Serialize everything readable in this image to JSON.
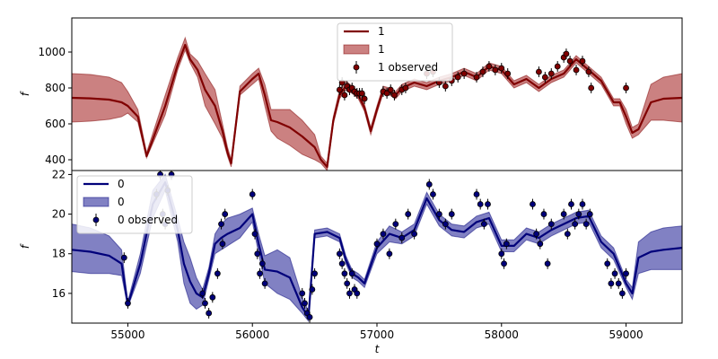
{
  "chart_data": [
    {
      "type": "line",
      "panel": "top",
      "xlabel": "",
      "ylabel": "f",
      "xlim": [
        54550,
        59450
      ],
      "ylim": [
        340,
        1190
      ],
      "yticks": [
        400,
        600,
        800,
        1000
      ],
      "legend": {
        "placement": "top-center",
        "entries": [
          "1",
          "1",
          "1 observed"
        ]
      },
      "colors": {
        "line": "#800000",
        "band": "#b54c4c",
        "points": "#800000"
      },
      "series": [
        {
          "name": "1",
          "kind": "mean-line",
          "x": [
            54550,
            54700,
            54850,
            54950,
            55000,
            55080,
            55150,
            55300,
            55400,
            55460,
            55500,
            55560,
            55620,
            55700,
            55760,
            55800,
            55830,
            55900,
            56000,
            56050,
            56100,
            56150,
            56200,
            56300,
            56400,
            56500,
            56550,
            56600,
            56650,
            56700,
            56750,
            56800,
            56850,
            56900,
            56950,
            57000,
            57050,
            57100,
            57150,
            57200,
            57300,
            57400,
            57500,
            57600,
            57700,
            57800,
            57900,
            58000,
            58100,
            58200,
            58300,
            58400,
            58500,
            58600,
            58700,
            58800,
            58900,
            58950,
            59000,
            59050,
            59100,
            59200,
            59300,
            59450
          ],
          "y": [
            745,
            742,
            735,
            720,
            700,
            640,
            420,
            700,
            930,
            1040,
            960,
            900,
            790,
            700,
            560,
            440,
            380,
            780,
            850,
            880,
            760,
            620,
            610,
            580,
            530,
            470,
            400,
            360,
            620,
            760,
            810,
            790,
            760,
            690,
            560,
            680,
            790,
            780,
            760,
            800,
            830,
            810,
            840,
            860,
            890,
            860,
            920,
            900,
            820,
            850,
            800,
            850,
            880,
            960,
            900,
            840,
            720,
            720,
            640,
            550,
            570,
            720,
            740,
            745
          ]
        },
        {
          "name": "1",
          "kind": "band",
          "x": [
            54550,
            54700,
            54850,
            54950,
            55000,
            55080,
            55150,
            55300,
            55400,
            55460,
            55500,
            55560,
            55620,
            55700,
            55760,
            55800,
            55830,
            55900,
            56000,
            56050,
            56100,
            56150,
            56200,
            56300,
            56400,
            56500,
            56550,
            56600,
            56650,
            56700,
            56750,
            56800,
            56850,
            56900,
            56950,
            57000,
            57050,
            57100,
            57150,
            57200,
            57300,
            57400,
            57500,
            57600,
            57700,
            57800,
            57900,
            58000,
            58100,
            58200,
            58300,
            58400,
            58500,
            58600,
            58700,
            58800,
            58900,
            58950,
            59000,
            59050,
            59100,
            59200,
            59300,
            59450
          ],
          "lower": [
            610,
            615,
            625,
            640,
            660,
            610,
            410,
            650,
            900,
            1010,
            940,
            860,
            700,
            600,
            520,
            420,
            360,
            760,
            820,
            850,
            700,
            560,
            520,
            480,
            430,
            400,
            380,
            340,
            600,
            740,
            790,
            770,
            740,
            670,
            540,
            660,
            770,
            760,
            740,
            780,
            810,
            790,
            820,
            840,
            870,
            840,
            900,
            880,
            800,
            830,
            780,
            830,
            860,
            940,
            880,
            820,
            700,
            700,
            600,
            520,
            540,
            620,
            620,
            610
          ],
          "upper": [
            880,
            875,
            860,
            830,
            780,
            680,
            440,
            760,
            970,
            1080,
            990,
            950,
            880,
            790,
            600,
            470,
            400,
            810,
            880,
            910,
            820,
            680,
            680,
            680,
            620,
            540,
            420,
            380,
            640,
            790,
            840,
            810,
            780,
            710,
            580,
            700,
            810,
            800,
            780,
            820,
            850,
            830,
            860,
            880,
            910,
            880,
            940,
            920,
            840,
            870,
            820,
            870,
            900,
            980,
            920,
            860,
            740,
            740,
            680,
            580,
            600,
            820,
            860,
            880
          ]
        },
        {
          "name": "1 observed",
          "kind": "points",
          "x": [
            56700,
            56720,
            56740,
            56760,
            56780,
            56800,
            56820,
            56840,
            56860,
            56880,
            56900,
            57050,
            57080,
            57110,
            57140,
            57200,
            57230,
            57400,
            57450,
            57500,
            57550,
            57600,
            57650,
            57700,
            57800,
            57850,
            57900,
            57950,
            58000,
            58050,
            58300,
            58350,
            58400,
            58450,
            58500,
            58520,
            58550,
            58600,
            58650,
            58700,
            58720,
            59000
          ],
          "y": [
            790,
            830,
            760,
            810,
            790,
            800,
            780,
            770,
            770,
            770,
            740,
            780,
            770,
            790,
            760,
            790,
            800,
            880,
            890,
            830,
            810,
            840,
            860,
            880,
            860,
            890,
            920,
            900,
            910,
            880,
            890,
            860,
            880,
            920,
            970,
            990,
            950,
            900,
            950,
            890,
            800,
            800
          ]
        }
      ]
    },
    {
      "type": "line",
      "panel": "bottom",
      "xlabel": "t",
      "ylabel": "f",
      "xlim": [
        54550,
        59450
      ],
      "ylim": [
        14.5,
        22.2
      ],
      "xticks": [
        55000,
        56000,
        57000,
        58000,
        59000
      ],
      "yticks": [
        16,
        18,
        20,
        22
      ],
      "legend": {
        "placement": "top-left",
        "entries": [
          "0",
          "0",
          "0 observed"
        ]
      },
      "colors": {
        "line": "#00007a",
        "band": "#4c4caa",
        "points": "#00007a"
      },
      "series": [
        {
          "name": "0",
          "kind": "mean-line",
          "x": [
            54550,
            54700,
            54850,
            54950,
            55000,
            55100,
            55200,
            55300,
            55400,
            55450,
            55500,
            55550,
            55600,
            55650,
            55700,
            55750,
            55800,
            55900,
            56000,
            56050,
            56100,
            56200,
            56300,
            56400,
            56450,
            56500,
            56600,
            56700,
            56750,
            56800,
            56850,
            56900,
            57000,
            57100,
            57200,
            57300,
            57400,
            57500,
            57600,
            57700,
            57800,
            57900,
            58000,
            58100,
            58200,
            58300,
            58400,
            58500,
            58600,
            58700,
            58800,
            58900,
            59000,
            59050,
            59100,
            59200,
            59300,
            59450
          ],
          "y": [
            18.2,
            18.1,
            17.9,
            17.5,
            15.4,
            17.5,
            20.5,
            21.6,
            19.2,
            17.5,
            16.6,
            16.0,
            15.8,
            17.0,
            18.5,
            18.8,
            19.0,
            19.3,
            20.0,
            18.5,
            17.2,
            17.1,
            16.8,
            15.3,
            14.8,
            19.0,
            19.1,
            18.8,
            17.7,
            17.0,
            16.8,
            16.5,
            18.3,
            19.0,
            18.8,
            19.2,
            20.8,
            19.7,
            19.2,
            19.1,
            19.6,
            19.8,
            18.4,
            18.4,
            19.0,
            18.8,
            19.2,
            19.5,
            19.8,
            19.9,
            18.6,
            18.0,
            16.5,
            16.0,
            17.8,
            18.1,
            18.2,
            18.3
          ]
        },
        {
          "name": "0",
          "kind": "band",
          "x": [
            54550,
            54700,
            54850,
            54950,
            55000,
            55100,
            55200,
            55300,
            55400,
            55450,
            55500,
            55550,
            55600,
            55650,
            55700,
            55750,
            55800,
            55900,
            56000,
            56050,
            56100,
            56200,
            56300,
            56400,
            56450,
            56500,
            56600,
            56700,
            56750,
            56800,
            56850,
            56900,
            57000,
            57100,
            57200,
            57300,
            57400,
            57500,
            57600,
            57700,
            57800,
            57900,
            58000,
            58100,
            58200,
            58300,
            58400,
            58500,
            58600,
            58700,
            58800,
            58900,
            59000,
            59050,
            59100,
            59200,
            59300,
            59450
          ],
          "lower": [
            17.1,
            17.0,
            17.0,
            16.9,
            15.3,
            17.0,
            19.8,
            21.2,
            18.6,
            16.5,
            15.5,
            15.2,
            15.4,
            16.7,
            18.0,
            18.2,
            18.4,
            18.8,
            19.6,
            18.0,
            16.5,
            16.0,
            15.7,
            15.0,
            14.6,
            18.8,
            18.9,
            18.6,
            17.5,
            16.8,
            16.6,
            16.3,
            18.0,
            18.6,
            18.5,
            18.9,
            20.5,
            19.4,
            18.9,
            18.8,
            19.3,
            19.5,
            18.1,
            18.1,
            18.7,
            18.5,
            18.9,
            19.2,
            19.5,
            19.6,
            18.3,
            17.7,
            16.3,
            15.7,
            17.0,
            17.2,
            17.2,
            17.2
          ],
          "upper": [
            19.5,
            19.3,
            18.9,
            18.2,
            15.6,
            18.0,
            21.2,
            22.0,
            19.8,
            18.6,
            17.8,
            16.8,
            16.2,
            17.3,
            19.0,
            19.5,
            19.8,
            20.0,
            20.3,
            19.0,
            17.9,
            18.2,
            17.8,
            15.8,
            15.1,
            19.2,
            19.3,
            19.0,
            17.9,
            17.2,
            17.0,
            16.7,
            18.6,
            19.4,
            19.1,
            19.5,
            21.1,
            20.0,
            19.5,
            19.4,
            19.9,
            20.1,
            18.7,
            18.7,
            19.3,
            19.1,
            19.5,
            19.8,
            20.1,
            20.2,
            18.9,
            18.3,
            16.7,
            16.3,
            18.6,
            19.1,
            19.3,
            19.4
          ]
        },
        {
          "name": "0 observed",
          "kind": "points",
          "x": [
            54970,
            55000,
            55230,
            55260,
            55280,
            55300,
            55320,
            55350,
            55600,
            55620,
            55650,
            55680,
            55720,
            55750,
            55760,
            55780,
            56000,
            56020,
            56040,
            56060,
            56080,
            56100,
            56400,
            56420,
            56440,
            56460,
            56480,
            56500,
            56700,
            56720,
            56740,
            56760,
            56780,
            56800,
            56820,
            56840,
            57000,
            57050,
            57100,
            57150,
            57200,
            57250,
            57300,
            57420,
            57450,
            57500,
            57550,
            57600,
            57800,
            57830,
            57860,
            57890,
            58000,
            58020,
            58040,
            58250,
            58280,
            58310,
            58340,
            58370,
            58400,
            58500,
            58530,
            58560,
            58590,
            58620,
            58650,
            58680,
            58710,
            58850,
            58880,
            58910,
            58940,
            58970,
            59000
          ],
          "y": [
            17.8,
            15.5,
            21.0,
            22.0,
            20.0,
            19.5,
            21.2,
            22.0,
            16.0,
            15.5,
            15.0,
            15.8,
            17.0,
            19.5,
            18.5,
            20.0,
            21.0,
            19.0,
            18.0,
            17.0,
            17.5,
            16.5,
            16.0,
            15.5,
            15.0,
            14.8,
            16.2,
            17.0,
            18.0,
            17.5,
            17.0,
            16.5,
            16.0,
            17.0,
            16.2,
            16.0,
            18.5,
            19.0,
            18.0,
            19.5,
            18.8,
            20.0,
            19.0,
            21.5,
            21.0,
            20.0,
            19.5,
            20.0,
            21.0,
            20.5,
            19.5,
            20.5,
            18.0,
            17.5,
            18.5,
            20.5,
            19.0,
            18.5,
            20.0,
            17.5,
            19.5,
            20.0,
            19.0,
            20.5,
            19.5,
            20.0,
            20.5,
            19.5,
            20.0,
            17.5,
            16.5,
            17.0,
            16.5,
            16.0,
            17.0
          ]
        }
      ]
    }
  ]
}
